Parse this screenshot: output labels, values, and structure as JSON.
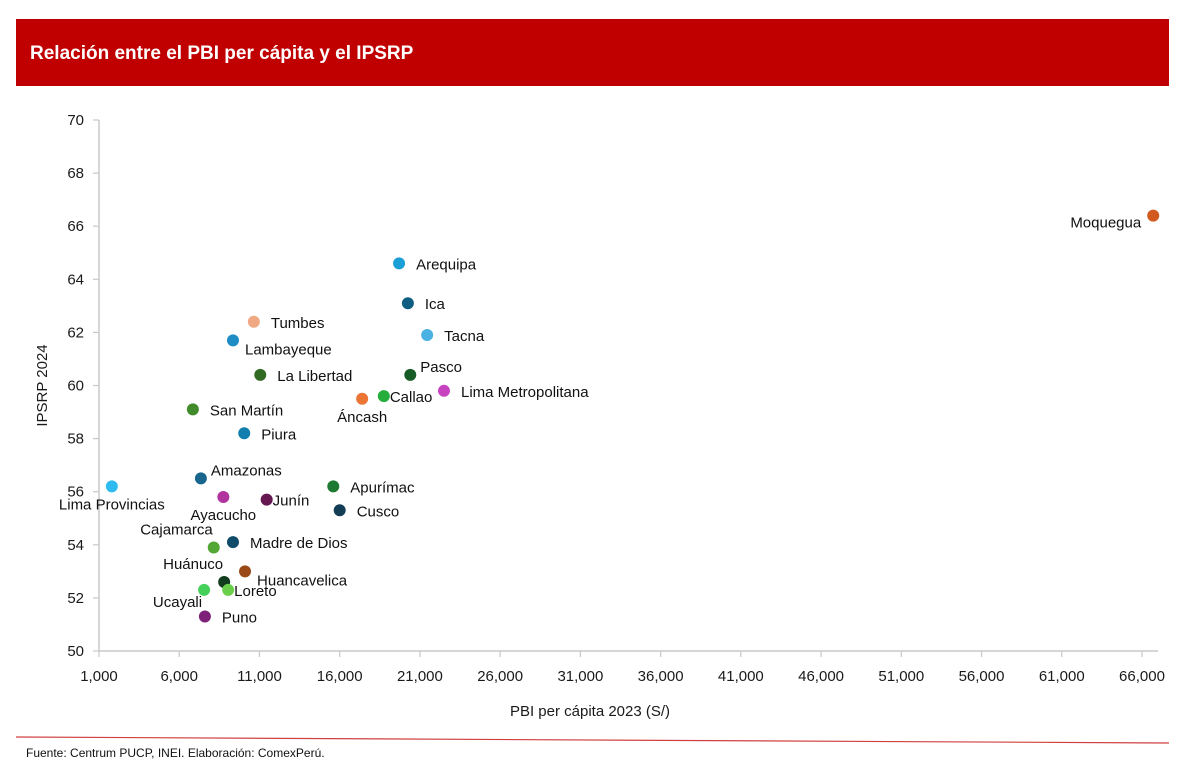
{
  "header": {
    "title": "Relación entre el PBI per cápita y el IPSRP"
  },
  "footer": {
    "source": "Fuente: Centrum PUCP, INEI. Elaboración: ComexPerú."
  },
  "colors": {
    "banner": "#c00000",
    "axis": "#c8c8c8",
    "divider": "#d04040"
  },
  "chart_data": {
    "type": "scatter",
    "title": "Relación entre el PBI per cápita y el IPSRP",
    "xlabel": "PBI per cápita 2023 (S/)",
    "ylabel": "IPSRP 2024",
    "xlim": [
      1000,
      67000
    ],
    "ylim": [
      50,
      70
    ],
    "x_ticks": [
      1000,
      6000,
      11000,
      16000,
      21000,
      26000,
      31000,
      36000,
      41000,
      46000,
      51000,
      56000,
      61000,
      66000
    ],
    "x_tick_labels": [
      "1,000",
      "6,000",
      "11,000",
      "16,000",
      "21,000",
      "26,000",
      "31,000",
      "36,000",
      "41,000",
      "46,000",
      "51,000",
      "56,000",
      "61,000",
      "66,000"
    ],
    "y_ticks": [
      50,
      52,
      54,
      56,
      58,
      60,
      62,
      64,
      66,
      68,
      70
    ],
    "y_tick_labels": [
      "50",
      "52",
      "54",
      "56",
      "58",
      "60",
      "62",
      "64",
      "66",
      "68",
      "70"
    ],
    "grid": false,
    "legend": "none",
    "points": [
      {
        "name": "Moquegua",
        "x": 66700,
        "y": 66.4,
        "color": "#d35a1e",
        "label_pos": "left-below"
      },
      {
        "name": "Arequipa",
        "x": 19700,
        "y": 64.6,
        "color": "#1a9fd6",
        "label_pos": "right"
      },
      {
        "name": "Ica",
        "x": 20250,
        "y": 63.1,
        "color": "#0f5e82",
        "label_pos": "right"
      },
      {
        "name": "Tumbes",
        "x": 10650,
        "y": 62.4,
        "color": "#f0a882",
        "label_pos": "right"
      },
      {
        "name": "Tacna",
        "x": 21450,
        "y": 61.9,
        "color": "#4ab1e3",
        "label_pos": "right"
      },
      {
        "name": "Lambayeque",
        "x": 9350,
        "y": 61.7,
        "color": "#1f8cc4",
        "label_pos": "right-below"
      },
      {
        "name": "La Libertad",
        "x": 11050,
        "y": 60.4,
        "color": "#316a22",
        "label_pos": "right"
      },
      {
        "name": "Pasco",
        "x": 20400,
        "y": 60.4,
        "color": "#175c27",
        "label_pos": "right-above"
      },
      {
        "name": "Lima Metropolitana",
        "x": 22500,
        "y": 59.8,
        "color": "#c843c0",
        "label_pos": "right"
      },
      {
        "name": "Callao",
        "x": 18750,
        "y": 59.6,
        "color": "#25ae3c",
        "label_pos": "right-tight"
      },
      {
        "name": "Áncash",
        "x": 17400,
        "y": 59.5,
        "color": "#ea7534",
        "label_pos": "below"
      },
      {
        "name": "San Martín",
        "x": 6850,
        "y": 59.1,
        "color": "#418b2b",
        "label_pos": "right"
      },
      {
        "name": "Piura",
        "x": 10050,
        "y": 58.2,
        "color": "#137fae",
        "label_pos": "right"
      },
      {
        "name": "Amazonas",
        "x": 7350,
        "y": 56.5,
        "color": "#18668e",
        "label_pos": "right-above"
      },
      {
        "name": "Lima Provincias",
        "x": 1800,
        "y": 56.2,
        "color": "#2ebcf0",
        "label_pos": "below"
      },
      {
        "name": "Apurímac",
        "x": 15600,
        "y": 56.2,
        "color": "#1e7a33",
        "label_pos": "right"
      },
      {
        "name": "Ayacucho",
        "x": 8750,
        "y": 55.8,
        "color": "#b0339e",
        "label_pos": "below"
      },
      {
        "name": "Junín",
        "x": 11450,
        "y": 55.7,
        "color": "#64184f",
        "label_pos": "right-tight"
      },
      {
        "name": "Cusco",
        "x": 16000,
        "y": 55.3,
        "color": "#123d55",
        "label_pos": "right"
      },
      {
        "name": "Madre de Dios",
        "x": 9350,
        "y": 54.1,
        "color": "#114b6a",
        "label_pos": "right"
      },
      {
        "name": "Cajamarca",
        "x": 8150,
        "y": 53.9,
        "color": "#52a735",
        "label_pos": "left-above"
      },
      {
        "name": "Huancavelica",
        "x": 10100,
        "y": 53.0,
        "color": "#9a4a18",
        "label_pos": "right-below"
      },
      {
        "name": "Huánuco",
        "x": 8800,
        "y": 52.6,
        "color": "#123d1e",
        "label_pos": "left-above"
      },
      {
        "name": "Ucayali",
        "x": 7550,
        "y": 52.3,
        "color": "#45d05a",
        "label_pos": "left-below"
      },
      {
        "name": "Loreto",
        "x": 9050,
        "y": 52.3,
        "color": "#6ad04a",
        "label_pos": "right-tight"
      },
      {
        "name": "Puno",
        "x": 7600,
        "y": 51.3,
        "color": "#7d2278",
        "label_pos": "right"
      }
    ]
  }
}
